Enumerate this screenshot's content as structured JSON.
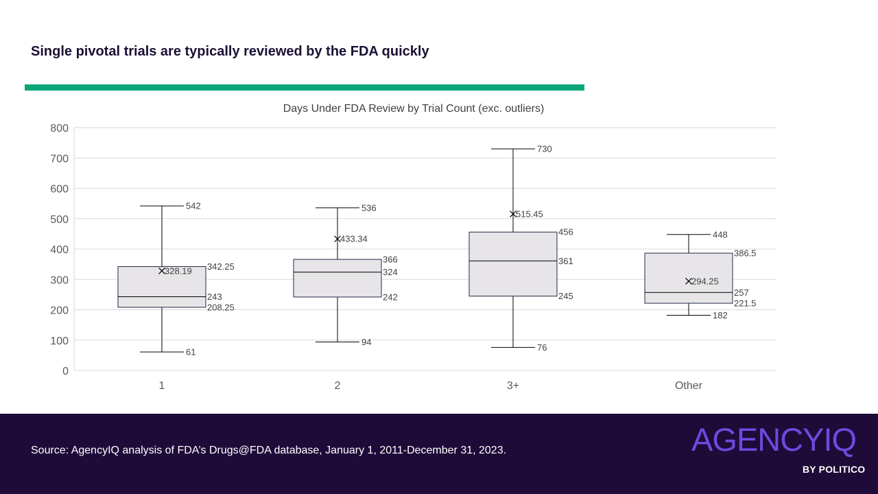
{
  "header": {
    "title": "Single pivotal trials are typically reviewed by the FDA quickly"
  },
  "footer": {
    "source": "Source: AgencyIQ analysis of FDA’s Drugs@FDA database, January 1, 2011-December 31, 2023.",
    "logo_main": "AGENCYIQ",
    "logo_sub": "BY POLITICO"
  },
  "colors": {
    "accent": "#0aa57a",
    "footer_bg": "#1e0b38",
    "logo": "#6b4bdf",
    "box_fill": "#e7e5e8",
    "grid": "#d9d9d9",
    "text": "#404040"
  },
  "chart_data": {
    "type": "box",
    "title": "Days Under FDA Review by Trial Count (exc. outliers)",
    "xlabel": "",
    "ylabel": "",
    "ylim": [
      0,
      800
    ],
    "yticks": [
      0,
      100,
      200,
      300,
      400,
      500,
      600,
      700,
      800
    ],
    "grid": true,
    "categories": [
      "1",
      "2",
      "3+",
      "Other"
    ],
    "boxes": [
      {
        "category": "1",
        "min": 61,
        "q1": 208.25,
        "median": 243,
        "q3": 342.25,
        "max": 542,
        "mean": 328.19,
        "labels": {
          "min": "61",
          "q1": "208.25",
          "median": "243",
          "q3": "342.25",
          "max": "542",
          "mean": "328.19"
        }
      },
      {
        "category": "2",
        "min": 94,
        "q1": 242,
        "median": 324,
        "q3": 366,
        "max": 536,
        "mean": 433.34,
        "labels": {
          "min": "94",
          "q1": "242",
          "median": "324",
          "q3": "366",
          "max": "536",
          "mean": "433.34"
        }
      },
      {
        "category": "3+",
        "min": 76,
        "q1": 245,
        "median": 361,
        "q3": 456,
        "max": 730,
        "mean": 515.45,
        "labels": {
          "min": "76",
          "q1": "245",
          "median": "361",
          "q3": "456",
          "max": "730",
          "mean": "515.45"
        }
      },
      {
        "category": "Other",
        "min": 182,
        "q1": 221.5,
        "median": 257,
        "q3": 386.5,
        "max": 448,
        "mean": 294.25,
        "labels": {
          "min": "182",
          "q1": "221.5",
          "median": "257",
          "q3": "386.5",
          "max": "448",
          "mean": "294.25"
        }
      }
    ]
  }
}
